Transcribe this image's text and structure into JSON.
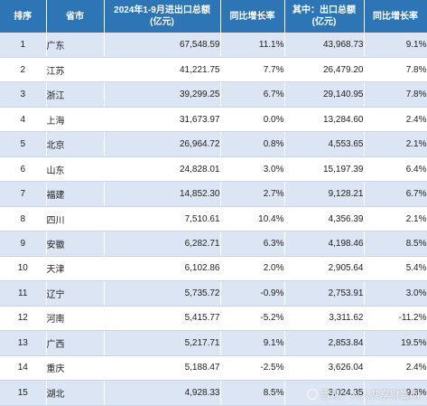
{
  "table": {
    "headers": {
      "rank": "排序",
      "province": "省市",
      "total_line1": "2024年1-9月进出口总额",
      "total_line2": "(亿元)",
      "total_yoy": "同比增长率",
      "export_line1": "其中：出口总额",
      "export_line2": "(亿元)",
      "export_yoy": "同比增长率"
    },
    "rows": [
      {
        "rank": "1",
        "province": "广东",
        "total": "67,548.59",
        "total_yoy": "11.1%",
        "export": "43,968.73",
        "export_yoy": "9.1%"
      },
      {
        "rank": "2",
        "province": "江苏",
        "total": "41,221.75",
        "total_yoy": "7.7%",
        "export": "26,479.20",
        "export_yoy": "7.8%"
      },
      {
        "rank": "3",
        "province": "浙江",
        "total": "39,299.25",
        "total_yoy": "6.7%",
        "export": "29,140.95",
        "export_yoy": "7.8%"
      },
      {
        "rank": "4",
        "province": "上海",
        "total": "31,673.97",
        "total_yoy": "0.0%",
        "export": "13,284.60",
        "export_yoy": "2.4%"
      },
      {
        "rank": "5",
        "province": "北京",
        "total": "26,964.72",
        "total_yoy": "0.8%",
        "export": "4,553.65",
        "export_yoy": "2.1%"
      },
      {
        "rank": "6",
        "province": "山东",
        "total": "24,828.01",
        "total_yoy": "3.0%",
        "export": "15,197.39",
        "export_yoy": "6.4%"
      },
      {
        "rank": "7",
        "province": "福建",
        "total": "14,852.30",
        "total_yoy": "2.7%",
        "export": "9,128.21",
        "export_yoy": "6.7%"
      },
      {
        "rank": "8",
        "province": "四川",
        "total": "7,510.61",
        "total_yoy": "10.4%",
        "export": "4,356.39",
        "export_yoy": "2.1%"
      },
      {
        "rank": "9",
        "province": "安徽",
        "total": "6,282.71",
        "total_yoy": "6.3%",
        "export": "4,198.46",
        "export_yoy": "8.5%"
      },
      {
        "rank": "10",
        "province": "天津",
        "total": "6,102.86",
        "total_yoy": "2.0%",
        "export": "2,905.64",
        "export_yoy": "5.4%"
      },
      {
        "rank": "11",
        "province": "辽宁",
        "total": "5,735.72",
        "total_yoy": "-0.9%",
        "export": "2,753.91",
        "export_yoy": "3.0%"
      },
      {
        "rank": "12",
        "province": "河南",
        "total": "5,415.77",
        "total_yoy": "-5.2%",
        "export": "3,311.62",
        "export_yoy": "-11.2%"
      },
      {
        "rank": "13",
        "province": "广西",
        "total": "5,217.71",
        "total_yoy": "9.1%",
        "export": "2,853.84",
        "export_yoy": "19.5%"
      },
      {
        "rank": "14",
        "province": "重庆",
        "total": "5,188.47",
        "total_yoy": "-2.5%",
        "export": "3,626.04",
        "export_yoy": "2.4%"
      },
      {
        "rank": "15",
        "province": "湖北",
        "total": "4,928.33",
        "total_yoy": "8.5%",
        "export": "3,024.35",
        "export_yoy": "9.3%"
      }
    ]
  },
  "watermark": {
    "icon": "snowball-logo-icon",
    "text": "雪球：人人共享财富网"
  }
}
